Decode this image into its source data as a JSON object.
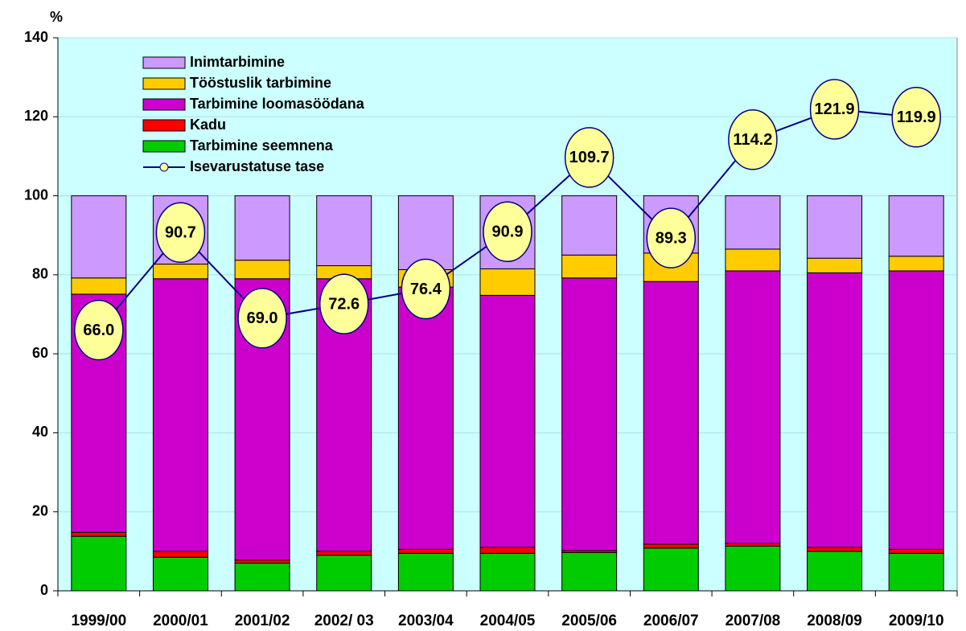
{
  "chart_data": {
    "type": "stacked-bar-line",
    "y_label": "%",
    "categories": [
      "1999/00",
      "2000/01",
      "2001/02",
      "2002/ 03",
      "2003/04",
      "2004/05",
      "2005/06",
      "2006/07",
      "2007/08",
      "2008/09",
      "2009/10"
    ],
    "series": [
      {
        "name": "Tarbimine seemnena",
        "color": "#00cc00",
        "values": [
          13.8,
          8.5,
          7,
          9,
          9.5,
          9.5,
          9.7,
          10.8,
          11.3,
          10,
          9.5
        ]
      },
      {
        "name": "Kadu",
        "color": "#ff0000",
        "values": [
          1,
          1.5,
          0.8,
          1,
          1,
          1.5,
          0.5,
          1,
          0.7,
          1,
          1
        ]
      },
      {
        "name": "Tarbimine loomasöödana",
        "color": "#cc00cc",
        "values": [
          60.3,
          69,
          71.2,
          69,
          66.4,
          63.8,
          69,
          66.5,
          69,
          69.5,
          70.5
        ]
      },
      {
        "name": "Tööstuslik tarbimine",
        "color": "#ffcc00",
        "values": [
          4.1,
          3.7,
          4.7,
          3.3,
          4.4,
          6.7,
          5.8,
          7.2,
          5.5,
          3.7,
          3.7
        ]
      },
      {
        "name": "Inimtarbimine",
        "color": "#cc99ff",
        "values": [
          20.8,
          17.3,
          16.3,
          17.7,
          18.7,
          18.5,
          15,
          14.5,
          13.5,
          15.8,
          15.3
        ]
      },
      {
        "name": "Isevarustatuse tase",
        "type": "line",
        "color": "#000080",
        "marker_color": "#ffff99",
        "values": [
          66,
          90.7,
          69,
          72.6,
          76.4,
          90.9,
          109.7,
          89.3,
          114.2,
          121.9,
          119.9
        ],
        "value_labels": [
          "66.0",
          "90.7",
          "69.0",
          "72.6",
          "76.4",
          "90.9",
          "109.7",
          "89.3",
          "114.2",
          "121.9",
          "119.9"
        ]
      }
    ],
    "ylim": [
      0,
      140
    ],
    "yticks": [
      0,
      20,
      40,
      60,
      80,
      100,
      120,
      140
    ],
    "grid": true,
    "background": "#ccffff"
  }
}
